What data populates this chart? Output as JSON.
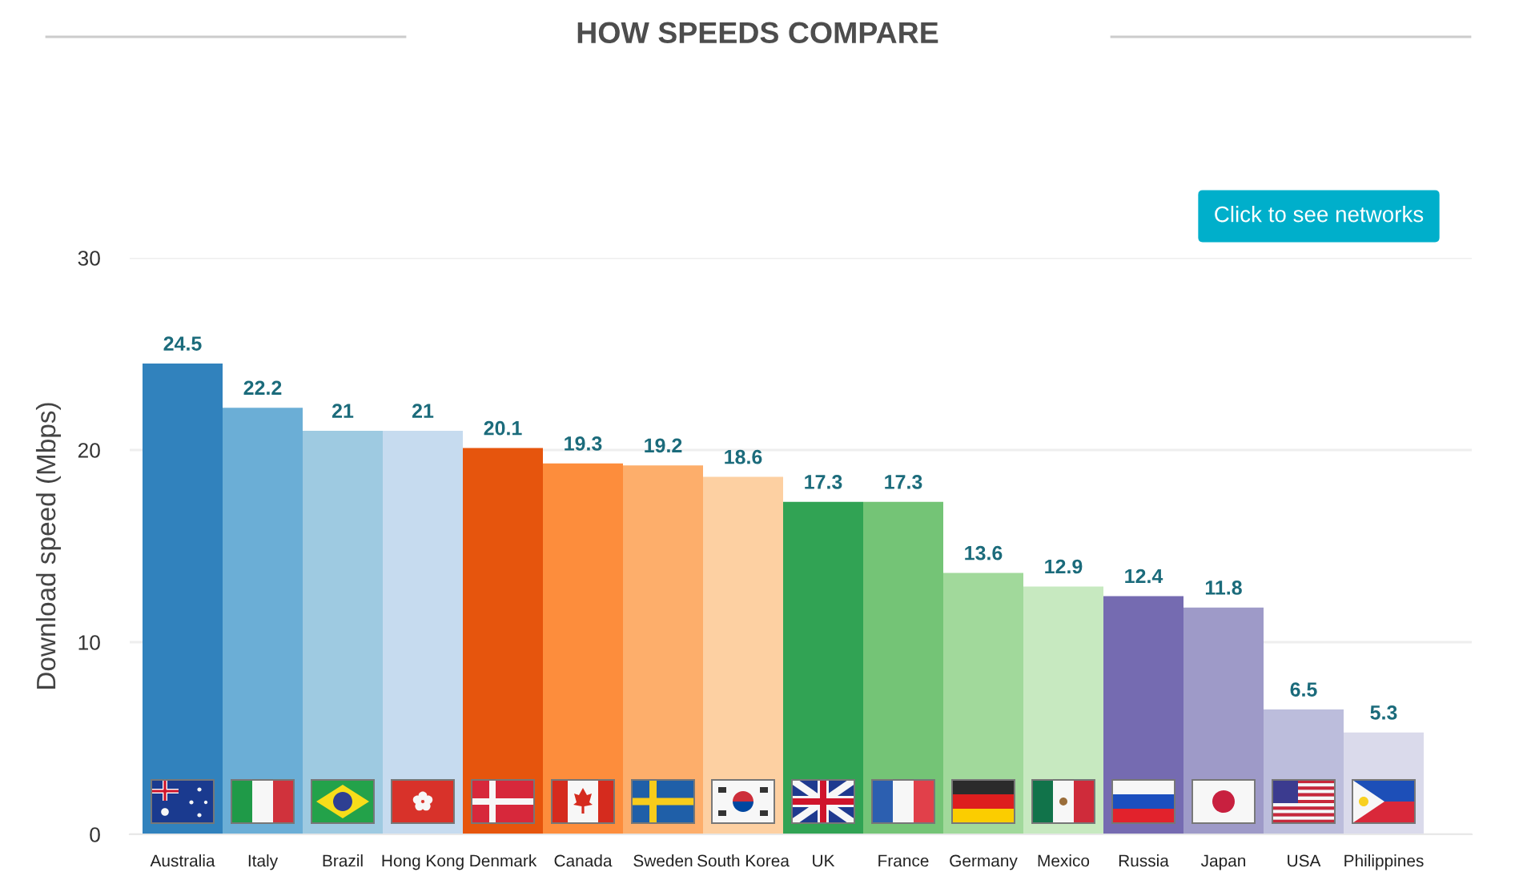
{
  "chart_data": {
    "type": "bar",
    "title": "HOW SPEEDS COMPARE",
    "ylabel": "Download speed (Mbps)",
    "annotations": [
      "Click to see networks"
    ],
    "categories": [
      "Australia",
      "Italy",
      "Brazil",
      "Hong Kong",
      "Denmark",
      "Canada",
      "Sweden",
      "South Korea",
      "UK",
      "France",
      "Germany",
      "Mexico",
      "Russia",
      "Japan",
      "USA",
      "Philippines"
    ],
    "values": [
      24.5,
      22.2,
      21,
      21,
      20.1,
      19.3,
      19.2,
      18.6,
      17.3,
      17.3,
      13.6,
      12.9,
      12.4,
      11.8,
      6.5,
      5.3
    ],
    "colors": [
      "#3182bd",
      "#6baed6",
      "#9ecae1",
      "#c6dbef",
      "#e6550d",
      "#fd8d3c",
      "#fdae6b",
      "#fdd0a2",
      "#31a354",
      "#74c476",
      "#a1d99b",
      "#c7e9c0",
      "#756bb1",
      "#9e9ac8",
      "#bcbddc",
      "#dadaeb"
    ],
    "ylim": [
      0,
      30
    ],
    "yticks": [
      0,
      10,
      20,
      30
    ],
    "grid": "y",
    "data_labels": true
  }
}
